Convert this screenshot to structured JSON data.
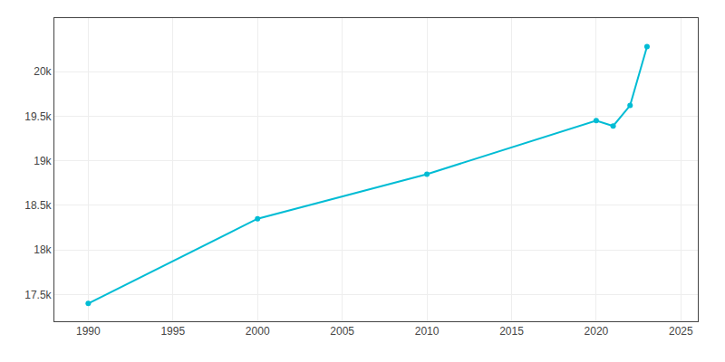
{
  "chart_data": {
    "type": "line",
    "x": [
      1990,
      2000,
      2010,
      2020,
      2021,
      2022,
      2023
    ],
    "values": [
      17400,
      18350,
      18850,
      19450,
      19390,
      19620,
      20280
    ],
    "color": "#00bcd4",
    "marker": "circle",
    "xlim": [
      1988,
      2026
    ],
    "xticks": [
      1990,
      1995,
      2000,
      2005,
      2010,
      2015,
      2020,
      2025
    ],
    "ylim": [
      17200,
      20600
    ],
    "yticks": [
      {
        "value": 17500,
        "label": "17.5k"
      },
      {
        "value": 18000,
        "label": "18k"
      },
      {
        "value": 18500,
        "label": "18.5k"
      },
      {
        "value": 19000,
        "label": "19k"
      },
      {
        "value": 19500,
        "label": "19.5k"
      },
      {
        "value": 20000,
        "label": "20k"
      }
    ],
    "grid": true
  }
}
